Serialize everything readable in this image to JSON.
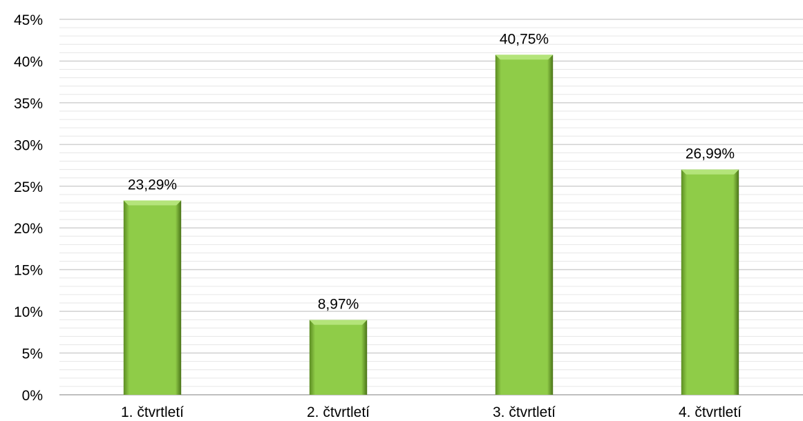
{
  "chart_data": {
    "type": "bar",
    "categories": [
      "1. čtvrtletí",
      "2. čtvrtletí",
      "3. čtvrtletí",
      "4. čtvrtletí"
    ],
    "values": [
      23.29,
      8.97,
      40.75,
      26.99
    ],
    "data_labels": [
      "23,29%",
      "8,97%",
      "40,75%",
      "26,99%"
    ],
    "ylim": [
      0,
      45
    ],
    "y_ticks": [
      0,
      5,
      10,
      15,
      20,
      25,
      30,
      35,
      40,
      45
    ],
    "y_tick_labels": [
      "0%",
      "5%",
      "10%",
      "15%",
      "20%",
      "25%",
      "30%",
      "35%",
      "40%",
      "45%"
    ],
    "minor_gridlines_per_major": 5,
    "grid": true,
    "legend": "none",
    "colors": {
      "bar_fill": "#8fcc48",
      "bar_light": "#b4e47a",
      "bar_dark": "#4f7a1c",
      "major_grid": "#d0d0d0",
      "minor_grid": "#e6e6e6",
      "axis": "#bfbfbf"
    }
  }
}
